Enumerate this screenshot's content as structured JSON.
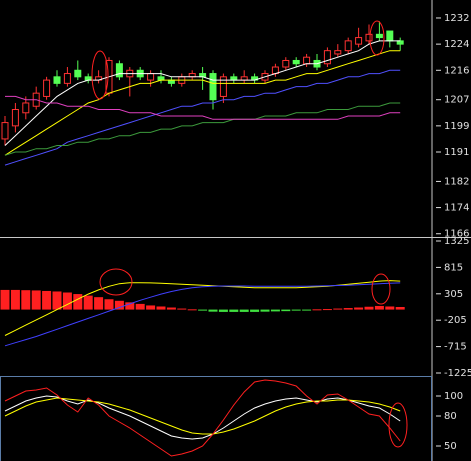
{
  "chart_data": [
    {
      "type": "candlestick",
      "up_color": "#ff3232",
      "down_color": "#54ff54",
      "open": [
        1195,
        1199,
        1203,
        1205,
        1208,
        1214,
        1212,
        1216,
        1214,
        1213,
        1209,
        1218,
        1214,
        1216,
        1213,
        1214,
        1213,
        1212,
        1214,
        1215,
        1215,
        1208,
        1214,
        1213,
        1214,
        1213,
        1215,
        1217,
        1219,
        1218,
        1219,
        1218,
        1221,
        1222,
        1224,
        1225,
        1227,
        1228,
        1225
      ],
      "close": [
        1200,
        1204,
        1206,
        1209,
        1213,
        1212,
        1215,
        1214,
        1213,
        1214,
        1219,
        1214,
        1216,
        1214,
        1215,
        1213,
        1212,
        1214,
        1215,
        1214,
        1207,
        1214,
        1213,
        1214,
        1213,
        1215,
        1217,
        1219,
        1218,
        1220,
        1217,
        1222,
        1222,
        1225,
        1226,
        1227,
        1226,
        1225,
        1224
      ],
      "high": [
        1202,
        1206,
        1208,
        1211,
        1214,
        1216,
        1217,
        1219,
        1215,
        1216,
        1220,
        1219,
        1217,
        1217,
        1216,
        1216,
        1214,
        1215,
        1216,
        1217,
        1216,
        1215,
        1215,
        1216,
        1215,
        1216,
        1218,
        1220,
        1220,
        1221,
        1221,
        1223,
        1224,
        1226,
        1229,
        1230,
        1231,
        1228,
        1226
      ],
      "low": [
        1193,
        1197,
        1201,
        1204,
        1207,
        1211,
        1211,
        1213,
        1212,
        1212,
        1208,
        1213,
        1208,
        1213,
        1211,
        1212,
        1211,
        1211,
        1213,
        1210,
        1204,
        1206,
        1212,
        1212,
        1212,
        1212,
        1214,
        1216,
        1217,
        1217,
        1216,
        1217,
        1220,
        1221,
        1223,
        1224,
        1225,
        1223,
        1222
      ],
      "series": [
        {
          "color": "#ffffff",
          "values": [
            1193,
            1196,
            1199,
            1202,
            1205,
            1208,
            1210,
            1212,
            1213,
            1213,
            1214,
            1215,
            1215,
            1215,
            1215,
            1215,
            1214,
            1214,
            1214,
            1214,
            1213,
            1213,
            1213,
            1213,
            1213,
            1214,
            1215,
            1216,
            1217,
            1218,
            1218,
            1219,
            1220,
            1221,
            1222,
            1224,
            1225,
            1225,
            1225
          ]
        },
        {
          "color": "#ffff00",
          "values": [
            1190,
            1192,
            1194,
            1196,
            1198,
            1200,
            1202,
            1204,
            1206,
            1207,
            1209,
            1210,
            1211,
            1212,
            1212,
            1213,
            1213,
            1213,
            1213,
            1213,
            1212,
            1212,
            1212,
            1212,
            1212,
            1212,
            1213,
            1213,
            1214,
            1215,
            1215,
            1216,
            1217,
            1218,
            1219,
            1220,
            1221,
            1222,
            1222
          ]
        },
        {
          "color": "#5050ff",
          "values": [
            1187,
            1188,
            1189,
            1190,
            1191,
            1192,
            1194,
            1195,
            1196,
            1197,
            1198,
            1199,
            1200,
            1201,
            1202,
            1203,
            1204,
            1205,
            1205,
            1206,
            1206,
            1207,
            1207,
            1208,
            1208,
            1209,
            1209,
            1210,
            1211,
            1211,
            1212,
            1212,
            1213,
            1214,
            1214,
            1215,
            1215,
            1216,
            1216
          ]
        },
        {
          "color": "#3c9a3c",
          "values": [
            1190,
            1191,
            1191,
            1192,
            1192,
            1193,
            1193,
            1194,
            1194,
            1195,
            1195,
            1196,
            1196,
            1197,
            1197,
            1198,
            1198,
            1199,
            1199,
            1200,
            1200,
            1200,
            1201,
            1201,
            1201,
            1202,
            1202,
            1202,
            1203,
            1203,
            1203,
            1204,
            1204,
            1204,
            1205,
            1205,
            1205,
            1206,
            1206
          ]
        },
        {
          "color": "#e040c0",
          "values": [
            1208,
            1208,
            1207,
            1207,
            1206,
            1206,
            1205,
            1205,
            1205,
            1204,
            1204,
            1204,
            1203,
            1203,
            1203,
            1202,
            1202,
            1202,
            1202,
            1202,
            1201,
            1201,
            1201,
            1201,
            1201,
            1201,
            1201,
            1201,
            1201,
            1201,
            1201,
            1201,
            1201,
            1202,
            1202,
            1202,
            1202,
            1203,
            1203
          ]
        }
      ],
      "ylim": [
        1165,
        1237.5
      ],
      "yticks": [
        1166,
        1174,
        1182,
        1191,
        1199,
        1207,
        1216,
        1224,
        1232
      ]
    },
    {
      "type": "macd",
      "up_color": "#ff2020",
      "down_color": "#40e040",
      "values": [
        380,
        380,
        375,
        370,
        360,
        350,
        330,
        300,
        270,
        240,
        200,
        170,
        140,
        110,
        80,
        60,
        40,
        20,
        5,
        -20,
        -40,
        -45,
        -45,
        -45,
        -45,
        -40,
        -35,
        -30,
        -20,
        -10,
        5,
        10,
        20,
        30,
        40,
        55,
        70,
        60,
        50
      ],
      "series": [
        {
          "color": "#ffff00",
          "values": [
            -500,
            -400,
            -300,
            -200,
            -100,
            0,
            100,
            200,
            300,
            380,
            450,
            500,
            520,
            520,
            515,
            510,
            500,
            490,
            480,
            470,
            460,
            450,
            440,
            430,
            420,
            420,
            420,
            420,
            420,
            430,
            440,
            450,
            470,
            490,
            510,
            530,
            550,
            560,
            550
          ]
        },
        {
          "color": "#4040ff",
          "values": [
            -700,
            -640,
            -580,
            -520,
            -450,
            -380,
            -310,
            -240,
            -170,
            -100,
            -30,
            40,
            110,
            180,
            240,
            300,
            350,
            390,
            420,
            440,
            450,
            455,
            455,
            455,
            450,
            450,
            450,
            450,
            450,
            450,
            455,
            460,
            465,
            470,
            480,
            490,
            500,
            510,
            515
          ]
        }
      ],
      "ylim": [
        -1283,
        1383
      ],
      "yticks": [
        -1225,
        -715,
        -205,
        305,
        815,
        1325
      ]
    },
    {
      "type": "line",
      "series": [
        {
          "color": "#ffffff",
          "values": [
            85,
            90,
            95,
            98,
            100,
            99,
            95,
            92,
            96,
            93,
            88,
            84,
            80,
            75,
            70,
            65,
            60,
            58,
            57,
            58,
            62,
            68,
            75,
            82,
            88,
            92,
            95,
            97,
            98,
            96,
            94,
            97,
            98,
            96,
            93,
            90,
            88,
            82,
            75
          ]
        },
        {
          "color": "#ffff00",
          "values": [
            80,
            85,
            90,
            94,
            96,
            98,
            97,
            96,
            95,
            94,
            92,
            89,
            86,
            82,
            78,
            74,
            70,
            66,
            63,
            62,
            62,
            64,
            67,
            71,
            75,
            80,
            85,
            89,
            92,
            94,
            95,
            95,
            96,
            96,
            95,
            94,
            92,
            89,
            85
          ]
        },
        {
          "color": "#ff2020",
          "values": [
            95,
            100,
            105,
            106,
            108,
            101,
            91,
            84,
            98,
            91,
            80,
            74,
            68,
            61,
            54,
            47,
            40,
            42,
            45,
            50,
            62,
            76,
            91,
            104,
            114,
            116,
            115,
            113,
            110,
            100,
            92,
            101,
            102,
            96,
            89,
            82,
            80,
            68,
            55
          ]
        }
      ],
      "ylim": [
        35,
        119
      ],
      "yticks": [
        50,
        80,
        100
      ]
    }
  ]
}
